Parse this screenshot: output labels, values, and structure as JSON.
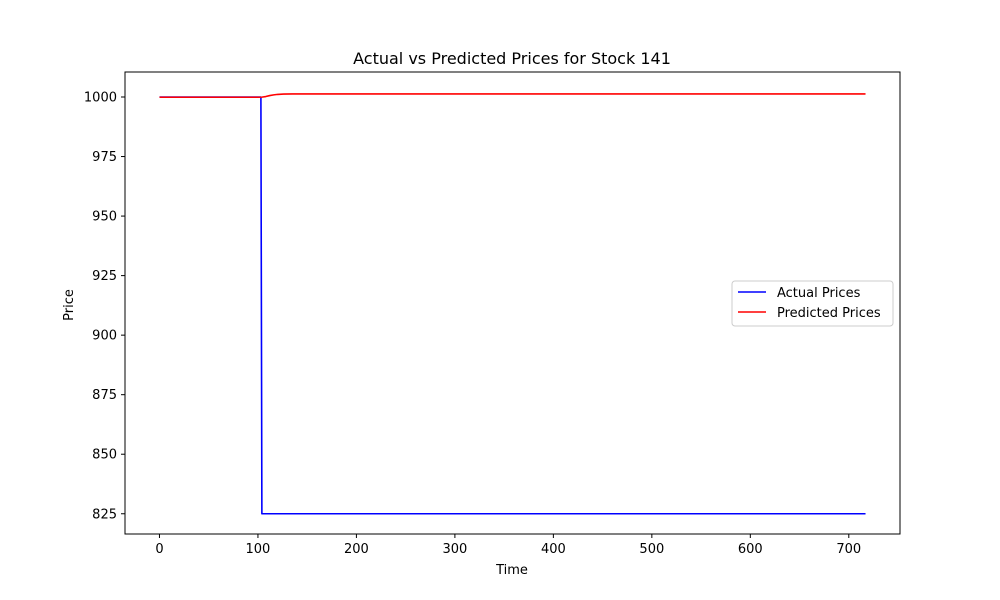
{
  "chart_data": {
    "type": "line",
    "title": "Actual vs Predicted Prices for Stock 141",
    "xlabel": "Time",
    "ylabel": "Price",
    "xlim": [
      -35,
      752
    ],
    "ylim": [
      816.5,
      1010.5
    ],
    "xticks": [
      0,
      100,
      200,
      300,
      400,
      500,
      600,
      700
    ],
    "yticks": [
      825,
      850,
      875,
      900,
      925,
      950,
      975,
      1000
    ],
    "grid": false,
    "legend_position": "center-right",
    "series": [
      {
        "name": "Actual Prices",
        "color": "#0000ff",
        "points": [
          [
            0,
            1000
          ],
          [
            103,
            1000
          ],
          [
            104,
            825
          ],
          [
            717,
            825
          ]
        ]
      },
      {
        "name": "Predicted Prices",
        "color": "#ff0000",
        "points": [
          [
            0,
            999.9
          ],
          [
            100,
            999.9
          ],
          [
            104,
            999.95
          ],
          [
            108,
            1000.2
          ],
          [
            112,
            1000.6
          ],
          [
            116,
            1000.9
          ],
          [
            120,
            1001.1
          ],
          [
            126,
            1001.25
          ],
          [
            135,
            1001.3
          ],
          [
            717,
            1001.3
          ]
        ]
      }
    ]
  }
}
